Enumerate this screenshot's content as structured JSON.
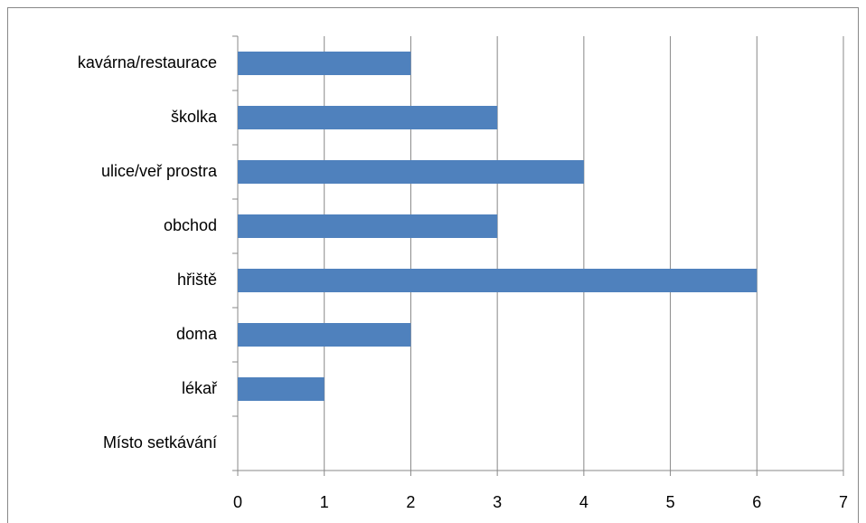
{
  "chart_data": {
    "type": "bar",
    "orientation": "horizontal",
    "categories": [
      "kavárna/restaurace",
      "školka",
      "ulice/veř prostra",
      "obchod",
      "hřiště",
      "doma",
      "lékař",
      "Místo setkávání"
    ],
    "values": [
      2,
      3,
      4,
      3,
      6,
      2,
      1,
      null
    ],
    "color": "#4f81bd",
    "xlim": [
      0,
      7
    ],
    "xticks": [
      0,
      1,
      2,
      3,
      4,
      5,
      6,
      7
    ],
    "grid": true
  }
}
